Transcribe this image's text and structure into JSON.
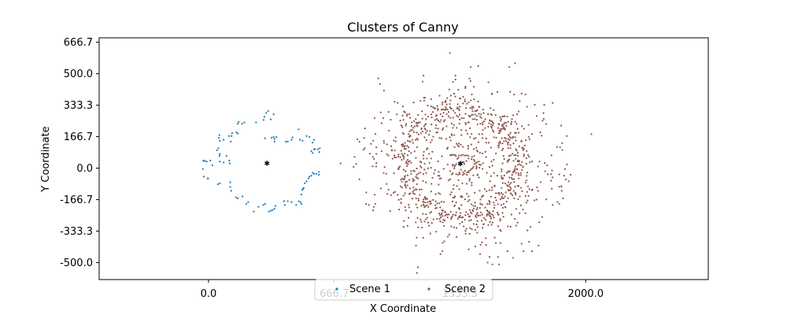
{
  "chart_data": {
    "type": "scatter",
    "title": "Clusters of Canny",
    "xlabel": "X Coordinate",
    "ylabel": "Y Coordinate",
    "xlim": [
      -580,
      2650
    ],
    "ylim": [
      -590,
      690
    ],
    "xticks": [
      0.0,
      666.7,
      1333.3,
      2000.0
    ],
    "xtick_labels": [
      "0.0",
      "666.7",
      "1333.3",
      "2000.0"
    ],
    "yticks": [
      666.7,
      500.0,
      333.3,
      166.7,
      0.0,
      -166.7,
      -333.3,
      -500.0
    ],
    "ytick_labels": [
      "666.7",
      "500.0",
      "333.3",
      "166.7",
      "0.0",
      "-166.7",
      "-333.3",
      "-500.0"
    ],
    "grid": false,
    "legend_placement": "lower-center",
    "series": [
      {
        "name": "Scene 1",
        "color": "#1f77b4",
        "center": [
          310,
          28
        ],
        "points": [
          [
            316,
            302
          ],
          [
            306,
            292
          ],
          [
            296,
            272
          ],
          [
            292,
            255
          ],
          [
            330,
            258
          ],
          [
            345,
            285
          ],
          [
            252,
            242
          ],
          [
            178,
            235
          ],
          [
            190,
            242
          ],
          [
            160,
            245
          ],
          [
            155,
            235
          ],
          [
            148,
            190
          ],
          [
            155,
            183
          ],
          [
            125,
            185
          ],
          [
            122,
            170
          ],
          [
            108,
            170
          ],
          [
            118,
            140
          ],
          [
            80,
            150
          ],
          [
            60,
            145
          ],
          [
            55,
            160
          ],
          [
            58,
            175
          ],
          [
            52,
            105
          ],
          [
            45,
            95
          ],
          [
            60,
            75
          ],
          [
            58,
            65
          ],
          [
            95,
            65
          ],
          [
            110,
            40
          ],
          [
            112,
            25
          ],
          [
            80,
            30
          ],
          [
            60,
            35
          ],
          [
            20,
            15
          ],
          [
            10,
            40
          ],
          [
            -10,
            35
          ],
          [
            -20,
            38
          ],
          [
            -30,
            -5
          ],
          [
            -5,
            -55
          ],
          [
            -2,
            -55
          ],
          [
            50,
            -85
          ],
          [
            60,
            -80
          ],
          [
            115,
            -100
          ],
          [
            115,
            -75
          ],
          [
            120,
            -120
          ],
          [
            145,
            -155
          ],
          [
            155,
            -160
          ],
          [
            180,
            -150
          ],
          [
            210,
            -180
          ],
          [
            200,
            -190
          ],
          [
            240,
            -230
          ],
          [
            265,
            -205
          ],
          [
            290,
            -195
          ],
          [
            300,
            -190
          ],
          [
            320,
            -230
          ],
          [
            330,
            -225
          ],
          [
            340,
            -222
          ],
          [
            350,
            -215
          ],
          [
            355,
            -200
          ],
          [
            405,
            -195
          ],
          [
            400,
            -175
          ],
          [
            400,
            -175
          ],
          [
            420,
            -175
          ],
          [
            440,
            -180
          ],
          [
            465,
            -195
          ],
          [
            478,
            -175
          ],
          [
            488,
            -180
          ],
          [
            492,
            -190
          ],
          [
            492,
            -140
          ],
          [
            498,
            -115
          ],
          [
            500,
            -110
          ],
          [
            505,
            -105
          ],
          [
            510,
            -80
          ],
          [
            520,
            -70
          ],
          [
            530,
            -55
          ],
          [
            535,
            -45
          ],
          [
            545,
            -40
          ],
          [
            552,
            -25
          ],
          [
            560,
            -30
          ],
          [
            572,
            -30
          ],
          [
            585,
            -20
          ],
          [
            585,
            -35
          ],
          [
            545,
            90
          ],
          [
            552,
            80
          ],
          [
            560,
            100
          ],
          [
            560,
            150
          ],
          [
            565,
            100
          ],
          [
            580,
            100
          ],
          [
            587,
            85
          ],
          [
            590,
            105
          ],
          [
            552,
            135
          ],
          [
            535,
            165
          ],
          [
            520,
            170
          ],
          [
            498,
            145
          ],
          [
            485,
            150
          ],
          [
            478,
            205
          ],
          [
            445,
            162
          ],
          [
            440,
            150
          ],
          [
            420,
            140
          ],
          [
            410,
            140
          ],
          [
            360,
            165
          ],
          [
            350,
            155
          ],
          [
            350,
            140
          ],
          [
            345,
            165
          ],
          [
            335,
            160
          ],
          [
            300,
            158
          ],
          [
            -25,
            -45
          ],
          [
            -28,
            40
          ]
        ]
      },
      {
        "name": "Scene 2",
        "color": "#8c564b",
        "center": [
          1335,
          25
        ],
        "ring_radius": 300,
        "ring_count": 520,
        "interior_count": 420,
        "outer_count": 140,
        "inner_ring_radius": 42,
        "inner_ring_count": 22,
        "stray_points": [
          [
            2030,
            180
          ],
          [
            1280,
            610
          ],
          [
            1390,
            535
          ],
          [
            1430,
            540
          ],
          [
            1140,
            490
          ],
          [
            1595,
            535
          ],
          [
            1625,
            555
          ],
          [
            1490,
            -470
          ],
          [
            1540,
            -510
          ],
          [
            1100,
            -410
          ],
          [
            1110,
            -525
          ],
          [
            1105,
            -555
          ],
          [
            1240,
            -440
          ],
          [
            1230,
            -455
          ],
          [
            1415,
            -415
          ],
          [
            1380,
            -430
          ],
          [
            1440,
            -455
          ],
          [
            1505,
            -510
          ],
          [
            1535,
            -470
          ],
          [
            1480,
            -500
          ],
          [
            1850,
            -180
          ],
          [
            1860,
            -190
          ],
          [
            1825,
            -195
          ],
          [
            1900,
            170
          ],
          [
            1870,
            225
          ],
          [
            1825,
            345
          ],
          [
            1780,
            335
          ],
          [
            1730,
            335
          ],
          [
            850,
            -195
          ],
          [
            835,
            -190
          ],
          [
            910,
            445
          ],
          [
            930,
            410
          ],
          [
            900,
            475
          ],
          [
            880,
            265
          ],
          [
            830,
            210
          ],
          [
            825,
            160
          ],
          [
            800,
            140
          ],
          [
            890,
            110
          ],
          [
            890,
            75
          ],
          [
            1585,
            -440
          ],
          [
            1615,
            -475
          ],
          [
            1670,
            -440
          ],
          [
            1715,
            -440
          ],
          [
            1750,
            -410
          ],
          [
            1700,
            -390
          ],
          [
            1660,
            -400
          ],
          [
            1660,
            395
          ],
          [
            1680,
            390
          ],
          [
            1650,
            355
          ],
          [
            1620,
            390
          ],
          [
            1885,
            -40
          ],
          [
            1890,
            -5
          ],
          [
            1900,
            20
          ],
          [
            1895,
            -60
          ],
          [
            1920,
            -35
          ],
          [
            1910,
            -70
          ],
          [
            1880,
            -160
          ],
          [
            700,
            25
          ]
        ]
      }
    ],
    "legend": [
      {
        "label": "Scene 1",
        "color": "#1f77b4"
      },
      {
        "label": "Scene 2",
        "color": "#8c564b"
      }
    ],
    "centroid_color": "#000000"
  }
}
